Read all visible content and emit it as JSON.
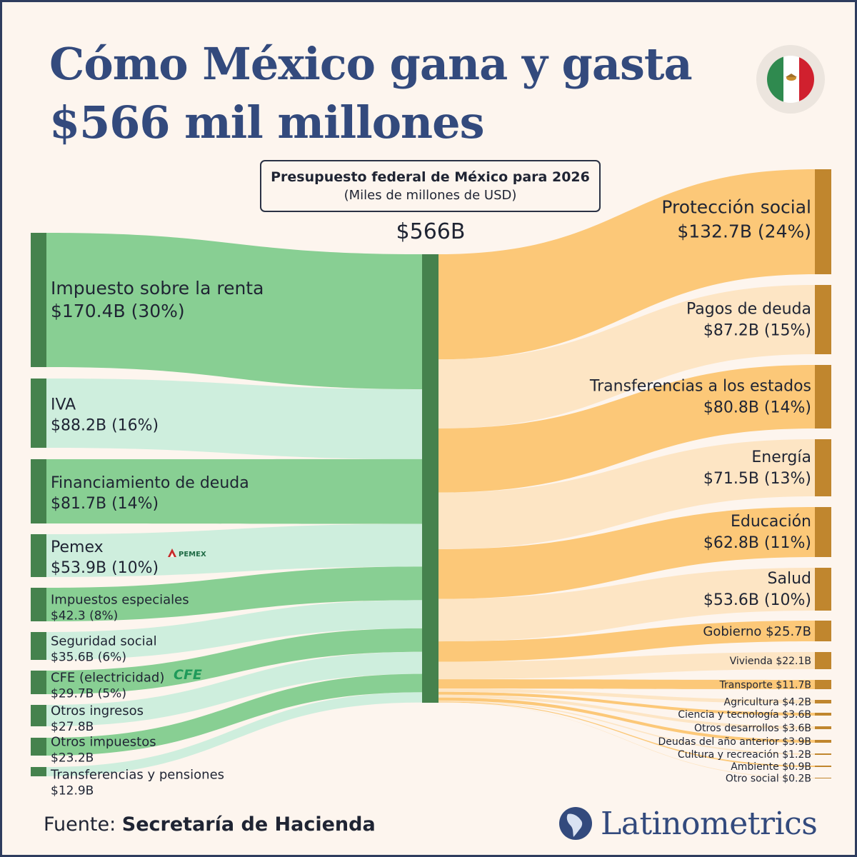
{
  "title": {
    "line1": "Cómo México gana y gasta",
    "line2": "$566 mil millones"
  },
  "subtitle": {
    "title": "Presupuesto federal de México para 2026",
    "units": "(Miles de millones de USD)"
  },
  "total_label": "$566B",
  "source": {
    "prefix": "Fuente:",
    "name": "Secretaría de Hacienda"
  },
  "brand": "Latinometrics",
  "logos": {
    "pemex": "PEMEX",
    "cfe": "CFE"
  },
  "colors": {
    "background": "#fdf5ee",
    "title": "#334a7d",
    "income_bar": "#45824d",
    "income_flow_a": "#88cf93",
    "income_flow_b": "#ceeedd",
    "expense_bar": "#c0862e",
    "expense_flow_a": "#fcc878",
    "expense_flow_b": "#fde5c4"
  },
  "chart_data": {
    "type": "sankey",
    "title": "Presupuesto federal de México para 2026",
    "units": "Miles de millones de USD",
    "total": 566,
    "income": [
      {
        "name": "Impuesto sobre la renta",
        "value": 170.4,
        "label": "$170.4B (30%)"
      },
      {
        "name": "IVA",
        "value": 88.2,
        "label": "$88.2B (16%)"
      },
      {
        "name": "Financiamiento de deuda",
        "value": 81.7,
        "label": "$81.7B (14%)"
      },
      {
        "name": "Pemex",
        "value": 53.9,
        "label": "$53.9B (10%)"
      },
      {
        "name": "Impuestos especiales",
        "value": 42.3,
        "label": "$42.3 (8%)"
      },
      {
        "name": "Seguridad social",
        "value": 35.6,
        "label": "$35.6B (6%)"
      },
      {
        "name": "CFE (electricidad)",
        "value": 29.7,
        "label": "$29.7B (5%)"
      },
      {
        "name": "Otros ingresos",
        "value": 27.8,
        "label": "$27.8B"
      },
      {
        "name": "Otros impuestos",
        "value": 23.2,
        "label": "$23.2B"
      },
      {
        "name": "Transferencias y pensiones",
        "value": 12.9,
        "label": "$12.9B"
      }
    ],
    "expenses": [
      {
        "name": "Protección social",
        "value": 132.7,
        "label": "$132.7B (24%)"
      },
      {
        "name": "Pagos de deuda",
        "value": 87.2,
        "label": "$87.2B (15%)"
      },
      {
        "name": "Transferencias a los estados",
        "value": 80.8,
        "label": "$80.8B (14%)"
      },
      {
        "name": "Energía",
        "value": 71.5,
        "label": "$71.5B (13%)"
      },
      {
        "name": "Educación",
        "value": 62.8,
        "label": "$62.8B (11%)"
      },
      {
        "name": "Salud",
        "value": 53.6,
        "label": "$53.6B (10%)"
      },
      {
        "name": "Gobierno",
        "value": 25.7,
        "label": "$25.7B"
      },
      {
        "name": "Vivienda",
        "value": 22.1,
        "label": "$22.1B"
      },
      {
        "name": "Transporte",
        "value": 11.7,
        "label": "$11.7B"
      },
      {
        "name": "Agricultura",
        "value": 4.2,
        "label": "$4.2B"
      },
      {
        "name": "Ciencia y tecnología",
        "value": 3.6,
        "label": "$3.6B"
      },
      {
        "name": "Otros desarrollos",
        "value": 3.6,
        "label": "$3.6B"
      },
      {
        "name": "Deudas del año anterior",
        "value": 3.9,
        "label": "$3.9B"
      },
      {
        "name": "Cultura y recreación",
        "value": 1.2,
        "label": "$1.2B"
      },
      {
        "name": "Ambiente",
        "value": 0.9,
        "label": "$0.9B"
      },
      {
        "name": "Otro social",
        "value": 0.2,
        "label": "$0.2B"
      }
    ]
  }
}
